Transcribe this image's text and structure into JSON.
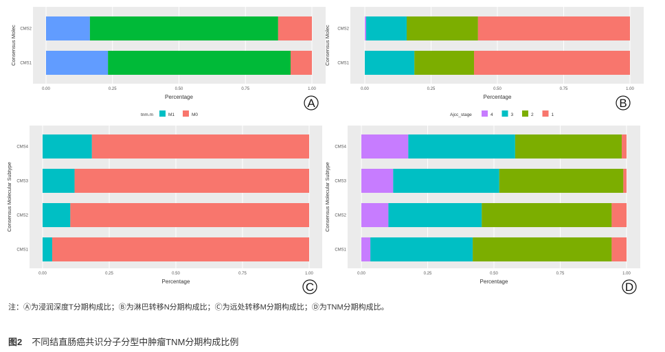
{
  "colors": {
    "panel_bg": "#EBEBEB",
    "grid": "#FFFFFF",
    "blue": "#619CFF",
    "green": "#00BA38",
    "red": "#F8766D",
    "teal": "#00BFC4",
    "olive": "#7CAE00",
    "purple": "#C77CFF"
  },
  "chart_data": [
    {
      "panel": "A",
      "type": "bar",
      "orientation": "horizontal",
      "stacked": true,
      "categories": [
        "CMS2",
        "CMS1"
      ],
      "xlabel": "Percentage",
      "ylabel": "Consensus Molec",
      "xticks": [
        "0.00",
        "0.25",
        "0.50",
        "0.75",
        "1.00"
      ],
      "xlim": [
        0,
        1
      ],
      "series": [
        {
          "color": "#619CFF",
          "values": [
            0.165,
            0.233
          ]
        },
        {
          "color": "#00BA38",
          "values": [
            0.708,
            0.687
          ]
        },
        {
          "color": "#F8766D",
          "values": [
            0.127,
            0.08
          ]
        }
      ],
      "legend": {
        "title": "tnm.m",
        "entries": [
          {
            "label": "M1",
            "color": "#00BFC4"
          },
          {
            "label": "M0",
            "color": "#F8766D"
          }
        ],
        "placement": "bottom"
      }
    },
    {
      "panel": "B",
      "type": "bar",
      "orientation": "horizontal",
      "stacked": true,
      "categories": [
        "CMS2",
        "CMS1"
      ],
      "xlabel": "Percentage",
      "ylabel": "Consensus Molec",
      "xticks": [
        "0.00",
        "0.25",
        "0.50",
        "0.75",
        "1.00"
      ],
      "xlim": [
        0,
        1
      ],
      "series": [
        {
          "name": "4",
          "color": "#C77CFF",
          "values": [
            0.005,
            0.0
          ]
        },
        {
          "name": "3",
          "color": "#00BFC4",
          "values": [
            0.153,
            0.187
          ]
        },
        {
          "name": "2",
          "color": "#7CAE00",
          "values": [
            0.269,
            0.225
          ]
        },
        {
          "name": "1",
          "color": "#F8766D",
          "values": [
            0.573,
            0.588
          ]
        }
      ],
      "legend": {
        "title": "Ajcc_stage",
        "entries": [
          {
            "label": "4",
            "color": "#C77CFF"
          },
          {
            "label": "3",
            "color": "#00BFC4"
          },
          {
            "label": "2",
            "color": "#7CAE00"
          },
          {
            "label": "1",
            "color": "#F8766D"
          }
        ],
        "placement": "bottom"
      }
    },
    {
      "panel": "C",
      "type": "bar",
      "orientation": "horizontal",
      "stacked": true,
      "categories": [
        "CMS4",
        "CMS3",
        "CMS2",
        "CMS1"
      ],
      "xlabel": "Percentage",
      "ylabel": "Consensus Molecular Subtype",
      "xticks": [
        "0.00",
        "0.25",
        "0.50",
        "0.75",
        "1.00"
      ],
      "xlim": [
        0,
        1
      ],
      "series": [
        {
          "name": "M1",
          "color": "#00BFC4",
          "values": [
            0.185,
            0.12,
            0.104,
            0.036
          ]
        },
        {
          "name": "M0",
          "color": "#F8766D",
          "values": [
            0.815,
            0.88,
            0.896,
            0.964
          ]
        }
      ]
    },
    {
      "panel": "D",
      "type": "bar",
      "orientation": "horizontal",
      "stacked": true,
      "categories": [
        "CMS4",
        "CMS3",
        "CMS2",
        "CMS1"
      ],
      "xlabel": "Percentage",
      "ylabel": "Consensus Molecular Subtype",
      "xticks": [
        "0.00",
        "0.25",
        "0.50",
        "0.75",
        "1.00"
      ],
      "xlim": [
        0,
        1
      ],
      "series": [
        {
          "name": "4",
          "color": "#C77CFF",
          "values": [
            0.177,
            0.12,
            0.102,
            0.034
          ]
        },
        {
          "name": "3",
          "color": "#00BFC4",
          "values": [
            0.403,
            0.4,
            0.352,
            0.386
          ]
        },
        {
          "name": "2",
          "color": "#7CAE00",
          "values": [
            0.402,
            0.468,
            0.49,
            0.524
          ]
        },
        {
          "name": "1",
          "color": "#F8766D",
          "values": [
            0.018,
            0.012,
            0.056,
            0.056
          ]
        }
      ]
    }
  ],
  "note": "注：Ⓐ为浸润深度T分期构成比；Ⓑ为淋巴转移N分期构成比；Ⓒ为远处转移M分期构成比；Ⓓ为TNM分期构成比。",
  "caption": {
    "label": "图2",
    "text": "不同结直肠癌共识分子分型中肿瘤TNM分期构成比例"
  }
}
